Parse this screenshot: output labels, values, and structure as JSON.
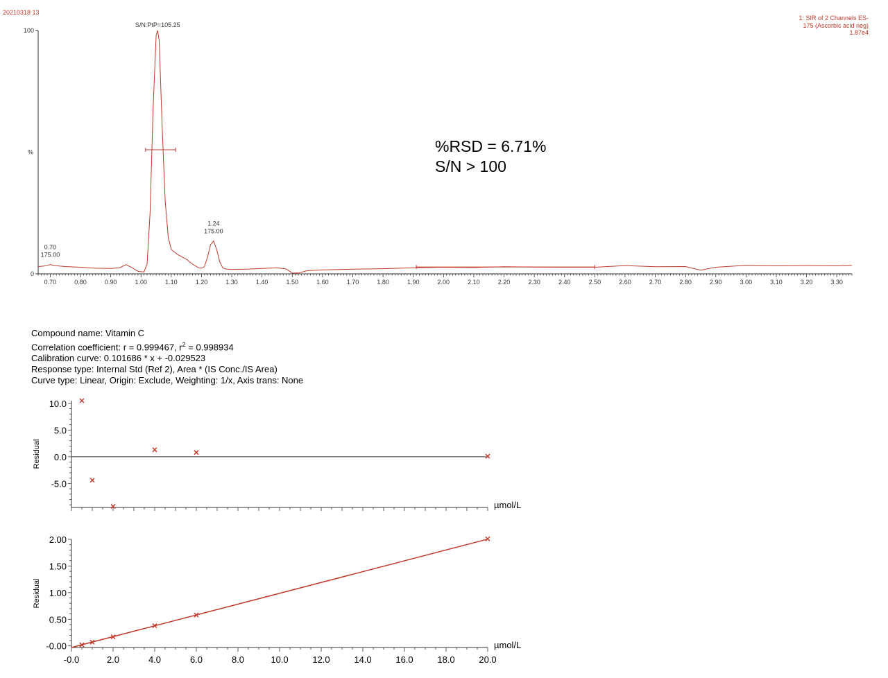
{
  "header": {
    "sample_id": "20210318 13",
    "channel_lines": [
      "1: SIR of 2 Channels ES-",
      "175 (Ascorbic acid neg)",
      "1.87e4"
    ]
  },
  "annotation": {
    "rsd": "%RSD = 6.71%",
    "sn": "S/N > 100"
  },
  "compound": {
    "name": "Compound name: Vitamin C",
    "correlation_prefix": "Correlation coefficient: r = 0.999467, r",
    "correlation_sup": "2",
    "correlation_suffix": " = 0.998934",
    "calibration": "Calibration curve: 0.101686 * x + -0.029523",
    "response": "Response type: Internal Std (Ref 2), Area * (IS Conc./IS Area)",
    "curve": "Curve type: Linear, Origin: Exclude, Weighting: 1/x, Axis trans: None"
  },
  "colors": {
    "trace": "#c0392b",
    "axis": "#333333"
  },
  "chart_data": [
    {
      "type": "line",
      "xlim": [
        0.66,
        3.35
      ],
      "ylim": [
        0,
        100
      ],
      "ylabel": "%",
      "y_ticks": [
        {
          "v": 0,
          "label": "0"
        },
        {
          "v": 100,
          "label": "100"
        }
      ],
      "x_ticks": [
        0.7,
        0.8,
        0.9,
        1.0,
        1.1,
        1.2,
        1.3,
        1.4,
        1.5,
        1.6,
        1.7,
        1.8,
        1.9,
        2.0,
        2.1,
        2.2,
        2.3,
        2.4,
        2.5,
        2.6,
        2.7,
        2.8,
        2.9,
        3.0,
        3.1,
        3.2,
        3.3
      ],
      "series": [
        {
          "x": [
            0.66,
            0.68,
            0.7,
            0.72,
            0.75,
            0.8,
            0.85,
            0.9,
            0.93,
            0.95,
            0.97,
            0.99,
            1.01,
            1.02,
            1.03,
            1.04,
            1.05,
            1.055,
            1.06,
            1.07,
            1.08,
            1.09,
            1.1,
            1.12,
            1.15,
            1.17,
            1.19,
            1.2,
            1.21,
            1.22,
            1.23,
            1.24,
            1.25,
            1.26,
            1.27,
            1.28,
            1.3,
            1.35,
            1.4,
            1.45,
            1.48,
            1.5,
            1.52,
            1.55,
            1.6,
            1.7,
            1.8,
            1.9,
            2.0,
            2.1,
            2.2,
            2.3,
            2.4,
            2.5,
            2.6,
            2.7,
            2.8,
            2.85,
            2.9,
            3.0,
            3.1,
            3.2,
            3.3,
            3.35
          ],
          "y": [
            3,
            3.2,
            3.8,
            3.3,
            3.0,
            2.7,
            2.3,
            2.2,
            2.5,
            3.8,
            2.6,
            1.0,
            0.8,
            4,
            25,
            68,
            98,
            100,
            96,
            60,
            30,
            15,
            10,
            8,
            6,
            4,
            2.5,
            2.3,
            3,
            7,
            12,
            13.5,
            10,
            5,
            2.5,
            2,
            1.8,
            1.9,
            2.2,
            2.5,
            2,
            0.3,
            0.3,
            1.3,
            1.6,
            1.9,
            2.1,
            2.5,
            2.7,
            2.6,
            2.9,
            2.8,
            2.7,
            2.7,
            3.4,
            2.9,
            3.0,
            1.5,
            2.7,
            3.5,
            3.3,
            3.4,
            3.3,
            3.5
          ]
        }
      ],
      "annotations": [
        {
          "text": "S/N:PtP=105.25",
          "x": 1.055,
          "y": 100
        },
        {
          "text": "1.24",
          "x": 1.24,
          "y": 13.5,
          "line": 0
        },
        {
          "text": "175.00",
          "x": 1.24,
          "y": 13.5,
          "line": 1
        },
        {
          "text": "0.70",
          "x": 0.7,
          "y": 3.8,
          "line": 0
        },
        {
          "text": "175.00",
          "x": 0.7,
          "y": 3.8,
          "line": 1
        }
      ],
      "width_bar": {
        "x1": 1.015,
        "x2": 1.115,
        "y": 51
      },
      "baseline_bar": {
        "x1": 1.91,
        "x2": 2.5,
        "y": 2.8
      }
    },
    {
      "type": "scatter",
      "xlabel": "µmol/L",
      "ylabel": "Residual",
      "xlim": [
        0,
        20
      ],
      "ylim": [
        -9.5,
        10.5
      ],
      "y_ticks": [
        {
          "v": 10,
          "label": "10.0"
        },
        {
          "v": 5,
          "label": "5.0"
        },
        {
          "v": 0,
          "label": "0.0"
        },
        {
          "v": -5,
          "label": "-5.0"
        }
      ],
      "zero_line": true,
      "points": {
        "x": [
          0.5,
          1.0,
          2.0,
          4.0,
          6.0,
          20.0
        ],
        "y": [
          10.5,
          -4.4,
          -9.3,
          1.3,
          0.8,
          0.1
        ]
      }
    },
    {
      "type": "scatter",
      "xlabel": "µmol/L",
      "ylabel": "Residual",
      "xlim": [
        0,
        20
      ],
      "ylim": [
        -0.03,
        2.0
      ],
      "y_ticks": [
        {
          "v": 2.0,
          "label": "2.00"
        },
        {
          "v": 1.5,
          "label": "1.50"
        },
        {
          "v": 1.0,
          "label": "1.00"
        },
        {
          "v": 0.5,
          "label": "0.50"
        },
        {
          "v": 0.0,
          "label": "-0.00"
        }
      ],
      "x_ticks": [
        {
          "v": 0,
          "label": "-0.0"
        },
        {
          "v": 2,
          "label": "2.0"
        },
        {
          "v": 4,
          "label": "4.0"
        },
        {
          "v": 6,
          "label": "6.0"
        },
        {
          "v": 8,
          "label": "8.0"
        },
        {
          "v": 10,
          "label": "10.0"
        },
        {
          "v": 12,
          "label": "12.0"
        },
        {
          "v": 14,
          "label": "14.0"
        },
        {
          "v": 16,
          "label": "16.0"
        },
        {
          "v": 18,
          "label": "18.0"
        },
        {
          "v": 20,
          "label": "20.0"
        }
      ],
      "fit": {
        "slope": 0.101686,
        "intercept": -0.029523
      },
      "points": {
        "x": [
          0.5,
          1.0,
          2.0,
          4.0,
          6.0,
          20.0
        ],
        "y": [
          0.02,
          0.07,
          0.17,
          0.38,
          0.58,
          2.01
        ]
      }
    }
  ]
}
